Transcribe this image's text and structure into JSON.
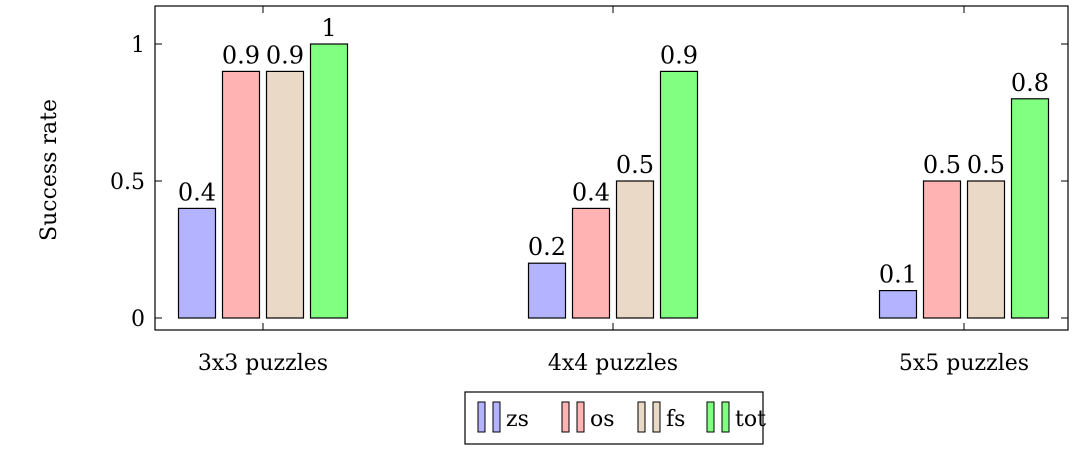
{
  "chart_data": {
    "type": "bar",
    "categories": [
      "3x3 puzzles",
      "4x4 puzzles",
      "5x5 puzzles"
    ],
    "series": [
      {
        "name": "zs",
        "values": [
          0.4,
          0.2,
          0.1
        ],
        "color": "#b3b3ff"
      },
      {
        "name": "os",
        "values": [
          0.9,
          0.4,
          0.5
        ],
        "color": "#ffb3b3"
      },
      {
        "name": "fs",
        "values": [
          0.9,
          0.5,
          0.5
        ],
        "color": "#ead9c6"
      },
      {
        "name": "tot",
        "values": [
          1,
          0.9,
          0.8
        ],
        "color": "#80ff80"
      }
    ],
    "data_labels": [
      [
        "0.4",
        "0.2",
        "0.1"
      ],
      [
        "0.9",
        "0.4",
        "0.5"
      ],
      [
        "0.9",
        "0.5",
        "0.5"
      ],
      [
        "1",
        "0.9",
        "0.8"
      ]
    ],
    "title": "",
    "xlabel": "",
    "ylabel": "Success rate",
    "ylim": [
      0,
      1
    ],
    "yticks": [
      0,
      0.5,
      1
    ],
    "ytick_labels": [
      "0",
      "0.5",
      "1"
    ],
    "grid": false,
    "legend_position": "bottom-center",
    "bar_edge_color": "#000000"
  }
}
